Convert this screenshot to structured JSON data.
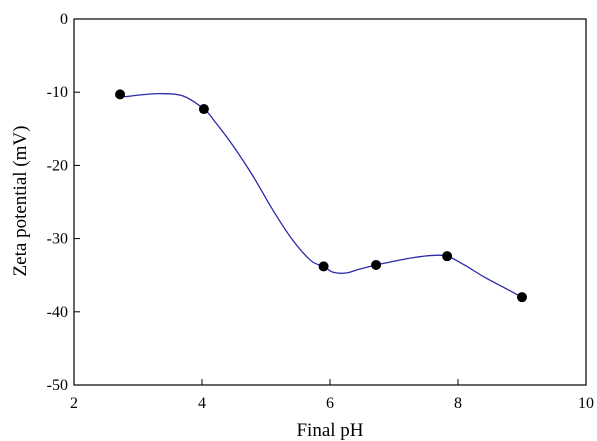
{
  "chart_data": {
    "type": "scatter",
    "title": "",
    "xlabel": "Final pH",
    "ylabel": "Zeta potential (mV)",
    "xlim": [
      2,
      10
    ],
    "ylim": [
      -50,
      0
    ],
    "xticks": [
      2,
      4,
      6,
      8,
      10
    ],
    "yticks": [
      0,
      -10,
      -20,
      -30,
      -40,
      -50
    ],
    "grid": false,
    "legend": "none",
    "series": [
      {
        "x": [
          2.72,
          4.03,
          5.9,
          6.72,
          7.83,
          9.0
        ],
        "y": [
          -10.3,
          -12.3,
          -33.8,
          -33.6,
          -32.4,
          -38.0
        ]
      }
    ],
    "curve": {
      "x": [
        2.72,
        2.8,
        3.0,
        3.35,
        3.7,
        4.03,
        4.2,
        4.5,
        4.8,
        5.1,
        5.4,
        5.7,
        5.9,
        6.05,
        6.25,
        6.45,
        6.72,
        7.0,
        7.3,
        7.6,
        7.83,
        8.1,
        8.4,
        8.7,
        9.0
      ],
      "y": [
        -10.3,
        -10.6,
        -10.4,
        -10.2,
        -10.5,
        -12.3,
        -14.0,
        -17.5,
        -21.5,
        -26.0,
        -30.0,
        -33.0,
        -33.8,
        -34.6,
        -34.7,
        -34.2,
        -33.6,
        -33.1,
        -32.6,
        -32.3,
        -32.4,
        -33.6,
        -35.2,
        -36.6,
        -38.0
      ],
      "color": "#2a2aaa"
    },
    "marker_color": "#000000"
  }
}
